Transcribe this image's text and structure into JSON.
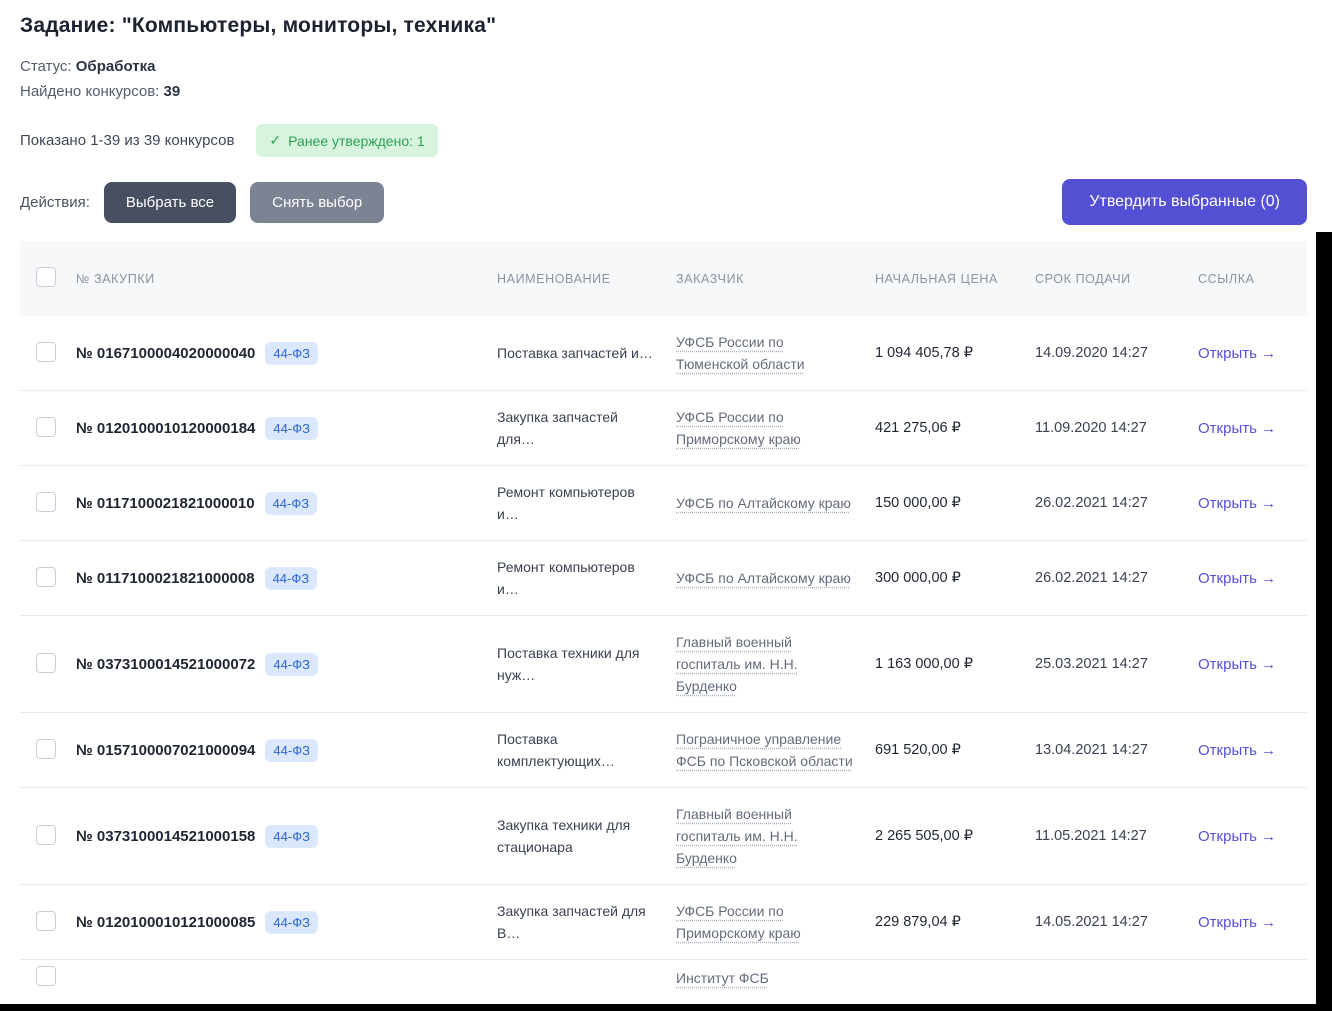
{
  "page": {
    "title": "Задание: \"Компьютеры, мониторы, техника\"",
    "status_label": "Статус:",
    "status_value": "Обработка",
    "found_label": "Найдено конкурсов:",
    "found_value": "39",
    "shown_text": "Показано 1-39 из 39 конкурсов",
    "approved_badge": {
      "icon": "✓",
      "text": "Ранее утверждено: 1"
    },
    "actions_label": "Действия:",
    "buttons": {
      "select_all": "Выбрать все",
      "deselect": "Снять выбор",
      "approve": "Утвердить выбранные (0)"
    }
  },
  "table": {
    "headers": {
      "number": "№ ЗАКУПКИ",
      "name": "НАИМЕНОВАНИЕ",
      "customer": "ЗАКАЗЧИК",
      "price": "НАЧАЛЬНАЯ ЦЕНА",
      "deadline": "СРОК ПОДАЧИ",
      "link": "ССЫЛКА"
    },
    "open_label": "Открыть",
    "open_arrow": "→",
    "rows": [
      {
        "number": "№ 0167100004020000040",
        "badge": "44-ФЗ",
        "name": "Поставка запчастей и…",
        "customer": "УФСБ России по Тюменской области",
        "price": "1 094 405,78 ₽",
        "deadline": "14.09.2020 14:27"
      },
      {
        "number": "№ 0120100010120000184",
        "badge": "44-ФЗ",
        "name": "Закупка запчастей для…",
        "customer": "УФСБ России по Приморскому краю",
        "price": "421 275,06 ₽",
        "deadline": "11.09.2020 14:27"
      },
      {
        "number": "№ 0117100021821000010",
        "badge": "44-ФЗ",
        "name": "Ремонт компьютеров и…",
        "customer": "УФСБ по Алтайскому краю",
        "price": "150 000,00 ₽",
        "deadline": "26.02.2021 14:27"
      },
      {
        "number": "№ 0117100021821000008",
        "badge": "44-ФЗ",
        "name": "Ремонт компьютеров и…",
        "customer": "УФСБ по Алтайскому краю",
        "price": "300 000,00 ₽",
        "deadline": "26.02.2021 14:27"
      },
      {
        "number": "№ 0373100014521000072",
        "badge": "44-ФЗ",
        "name": "Поставка техники для нуж…",
        "customer": "Главный военный госпиталь им. Н.Н. Бурденко",
        "price": "1 163 000,00 ₽",
        "deadline": "25.03.2021 14:27"
      },
      {
        "number": "№ 0157100007021000094",
        "badge": "44-ФЗ",
        "name": "Поставка комплектующих…",
        "customer": "Пограничное управление ФСБ по Псковской области",
        "price": "691 520,00 ₽",
        "deadline": "13.04.2021 14:27"
      },
      {
        "number": "№ 0373100014521000158",
        "badge": "44-ФЗ",
        "name": "Закупка техники для стационара",
        "customer": "Главный военный госпиталь им. Н.Н. Бурденко",
        "price": "2 265 505,00 ₽",
        "deadline": "11.05.2021 14:27"
      },
      {
        "number": "№ 0120100010121000085",
        "badge": "44-ФЗ",
        "name": "Закупка запчастей для В…",
        "customer": "УФСБ России по Приморскому краю",
        "price": "229 879,04 ₽",
        "deadline": "14.05.2021 14:27"
      }
    ],
    "partial_row": {
      "customer": "Институт ФСБ"
    }
  },
  "colors": {
    "accent": "#5450d4",
    "link": "#5551d6",
    "dark-btn": "#474f61",
    "gray-btn": "#7c8494",
    "green-bg": "#d9f4de",
    "green-text": "#2aa355",
    "blue-badge-bg": "#dbe7fd",
    "blue-badge-text": "#2b66d9"
  }
}
